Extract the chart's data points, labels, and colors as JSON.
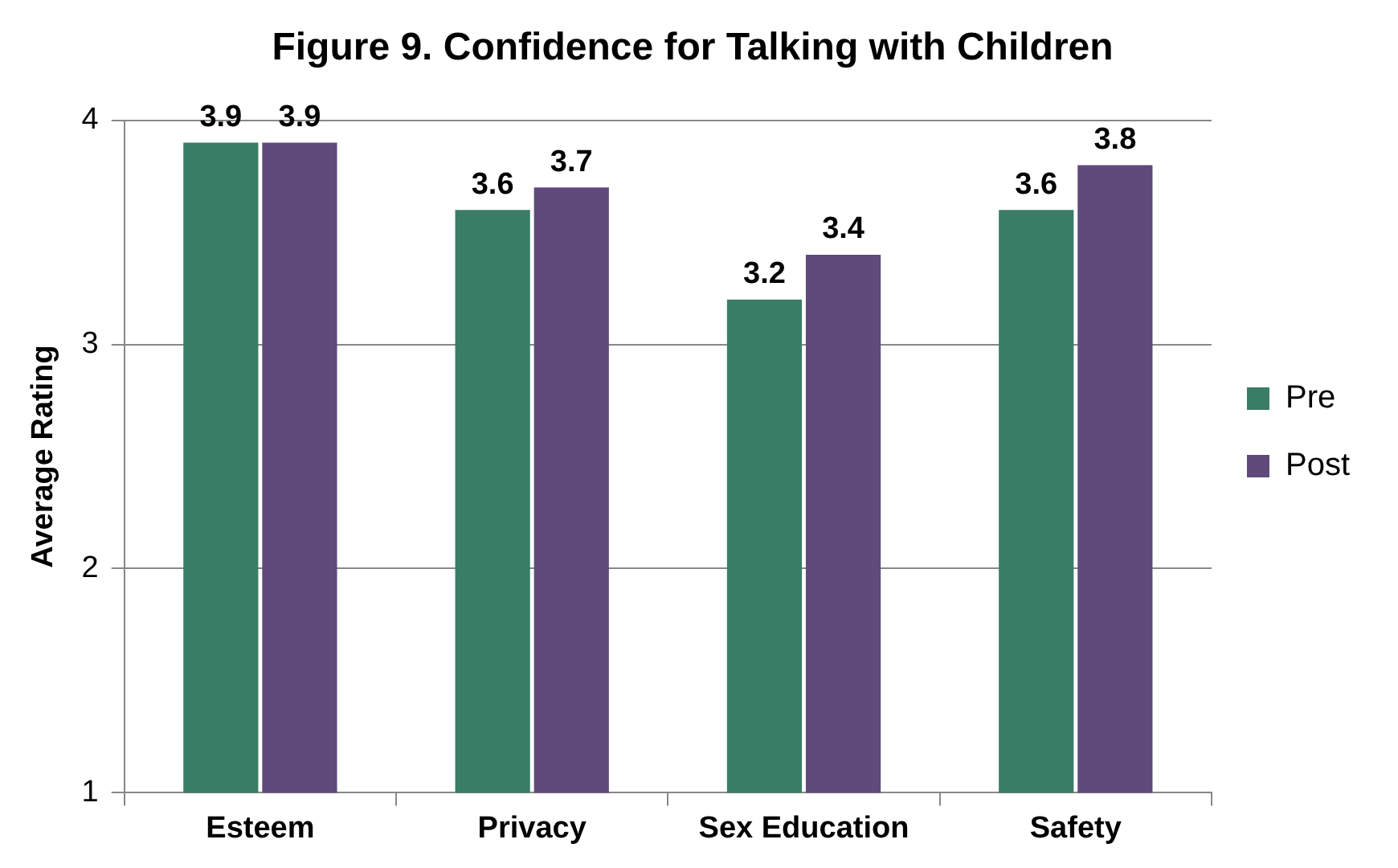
{
  "chart_data": {
    "type": "bar",
    "title": "Figure 9. Confidence for Talking with Children",
    "ylabel": "Average Rating",
    "categories": [
      "Esteem",
      "Privacy",
      "Sex Education",
      "Safety"
    ],
    "series": [
      {
        "name": "Pre",
        "color": "#3b7c66",
        "values": [
          3.9,
          3.6,
          3.2,
          3.6
        ]
      },
      {
        "name": "Post",
        "color": "#5f4a7b",
        "values": [
          3.9,
          3.7,
          3.4,
          3.8
        ]
      }
    ],
    "ylim": [
      1,
      4
    ],
    "yticks": [
      1,
      2,
      3,
      4
    ],
    "grid": "y",
    "legend": "right",
    "data_labels": true
  }
}
